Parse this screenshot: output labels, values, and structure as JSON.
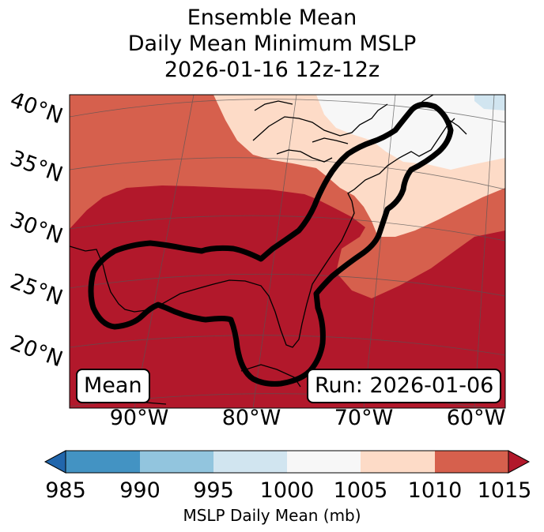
{
  "title": {
    "line1": "Ensemble Mean",
    "line2": "Daily Mean Minimum MSLP",
    "line3": "2026-01-16 12z-12z"
  },
  "map": {
    "lat_labels": [
      "40°N",
      "35°N",
      "30°N",
      "25°N",
      "20°N"
    ],
    "lon_labels": [
      "90°W",
      "80°W",
      "70°W",
      "60°W"
    ],
    "mean_label": "Mean",
    "run_label": "Run: 2026-01-06",
    "contour_color": "#000000",
    "coastline_color": "#000000"
  },
  "colorbar": {
    "ticks": [
      "985",
      "990",
      "995",
      "1000",
      "1005",
      "1010",
      "1015"
    ],
    "label": "MSLP Daily Mean (mb)",
    "colors": [
      "#2166ac",
      "#4393c3",
      "#92c5de",
      "#d1e5f0",
      "#f7f7f7",
      "#fddbc7",
      "#d6604d",
      "#b2182b"
    ],
    "min_color": "#2166ac",
    "max_color": "#b2182b"
  }
}
